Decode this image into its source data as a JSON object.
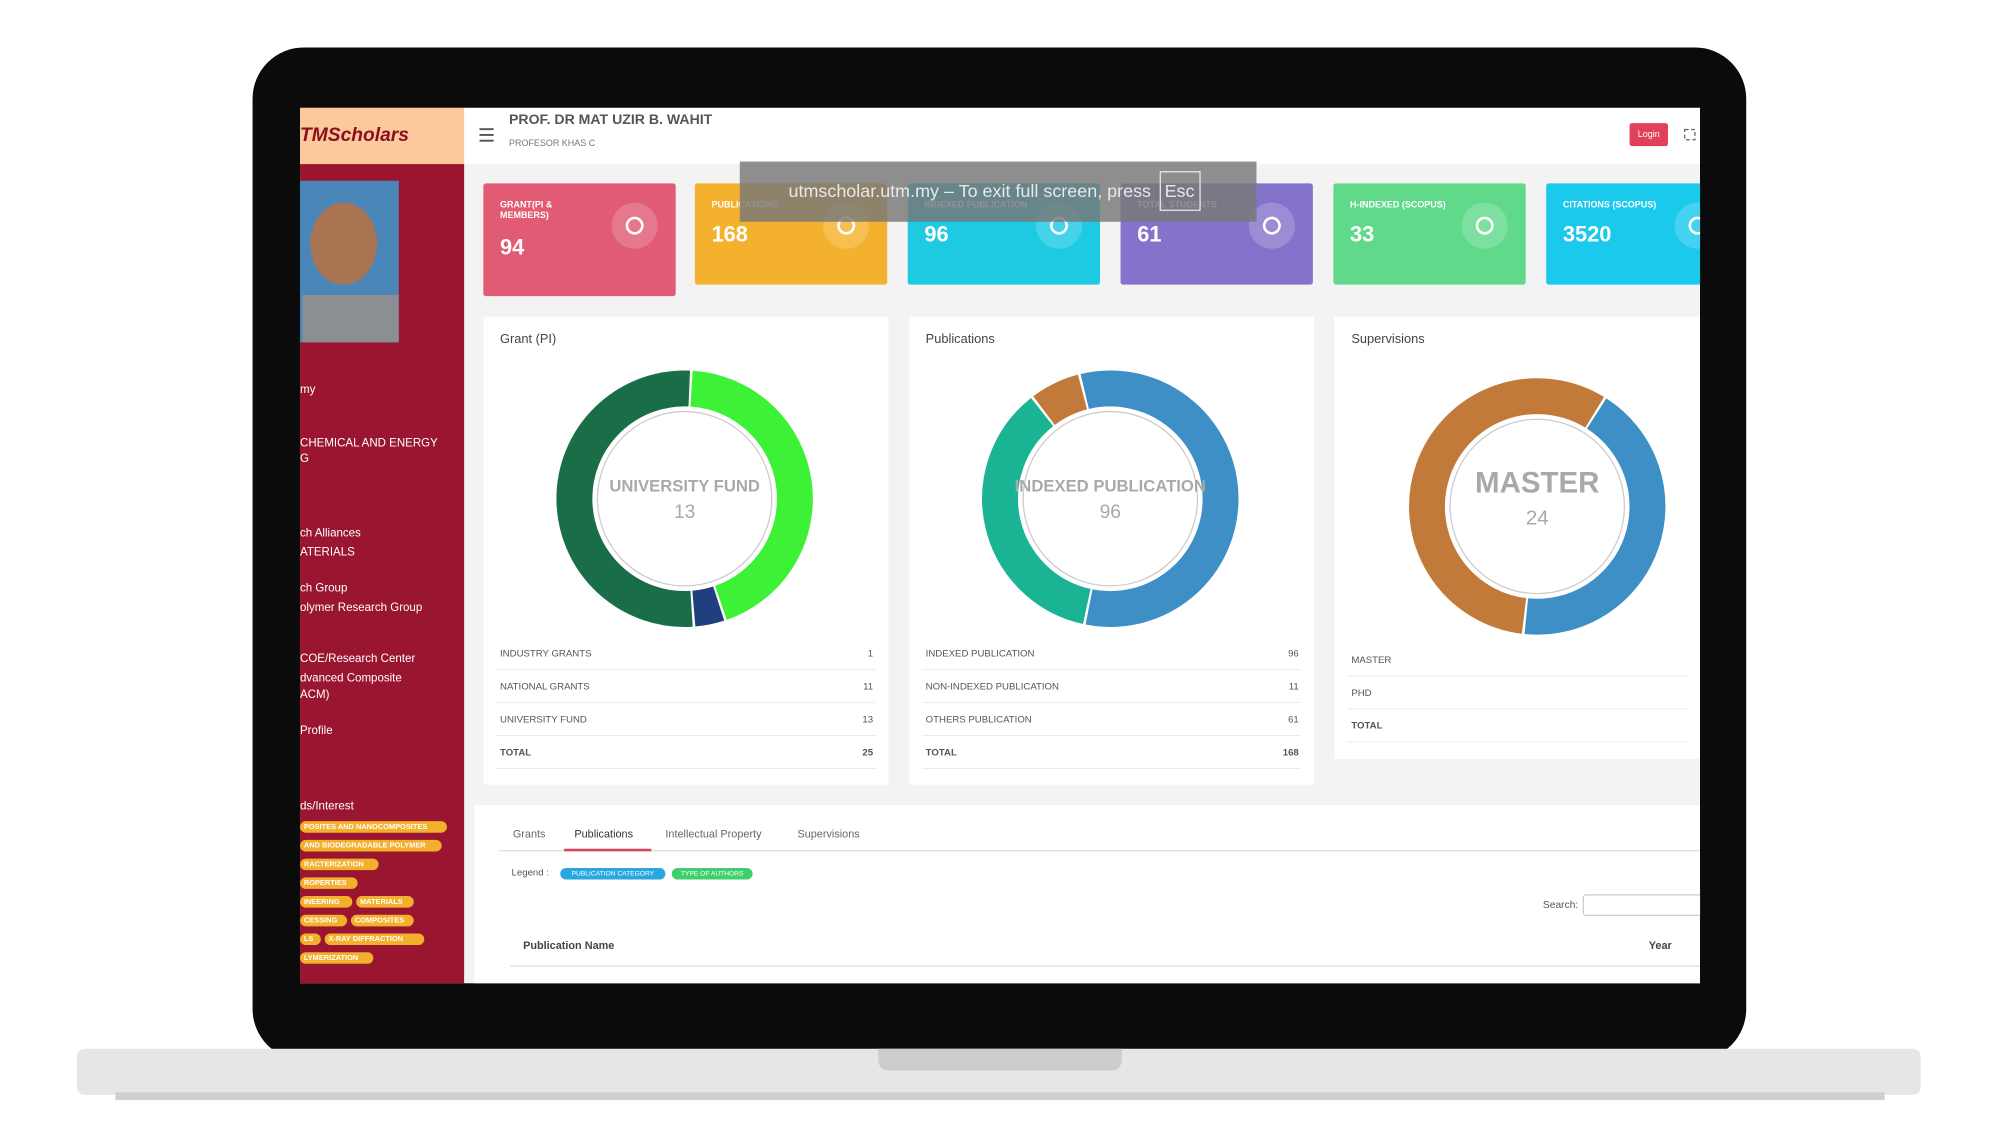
{
  "brand": "TMScholars",
  "header": {
    "name": "PROF. DR MAT UZIR B. WAHIT",
    "position": "PROFESOR KHAS C",
    "login": "Login"
  },
  "notice": {
    "text": "utmscholar.utm.my – To exit full screen, press",
    "key": "Esc"
  },
  "sidebar": {
    "lines": [
      "my",
      "CHEMICAL AND ENERGY",
      "G",
      "ch Alliances",
      "ATERIALS",
      "ch Group",
      "olymer Research Group",
      "COE/Research Center",
      "dvanced Composite",
      "ACM)",
      "Profile",
      "ds/Interest"
    ],
    "interest_tags": [
      [
        "POSITES AND NANOCOMPOSITES"
      ],
      [
        "AND BIODEGRADABLE POLYMER"
      ],
      [
        "RACTERIZATION"
      ],
      [
        "ROPERTIES"
      ],
      [
        "INEERING",
        "MATERIALS"
      ],
      [
        "CESSING",
        "COMPOSITES"
      ],
      [
        "LS",
        "X-RAY DIFFRACTION"
      ],
      [
        "LYMERIZATION"
      ]
    ]
  },
  "stats": [
    {
      "label": [
        "GRANT(PI &",
        "MEMBERS)"
      ],
      "value": 94,
      "color": "#e05b73"
    },
    {
      "label": [
        "PUBLICATIONS"
      ],
      "value": 168,
      "color": "#f4b12d"
    },
    {
      "label": [
        "INDEXED PUBLICATION"
      ],
      "value": 96,
      "color": "#1ec9e2"
    },
    {
      "label": [
        "TOTAL STUDENTS"
      ],
      "value": 61,
      "color": "#8573cb"
    },
    {
      "label": [
        "H-INDEXED (SCOPUS)"
      ],
      "value": 33,
      "color": "#61d98b"
    },
    {
      "label": [
        "CITATIONS (SCOPUS)"
      ],
      "value": 3520,
      "color": "#1ac9ec"
    }
  ],
  "panels": [
    {
      "title": "Grant (PI)",
      "center": {
        "label": "UNIVERSITY FUND",
        "value": 13
      },
      "rows": [
        {
          "label": "INDUSTRY GRANTS",
          "value": 1,
          "color": "#1f3f7e"
        },
        {
          "label": "NATIONAL GRANTS",
          "value": 11,
          "color": "#3df236"
        },
        {
          "label": "UNIVERSITY FUND",
          "value": 13,
          "color": "#1a6e47"
        }
      ],
      "total": {
        "label": "TOTAL",
        "value": 25
      }
    },
    {
      "title": "Publications",
      "center": {
        "label": "INDEXED PUBLICATION",
        "value": 96
      },
      "rows": [
        {
          "label": "INDEXED PUBLICATION",
          "value": 96,
          "color": "#3d8fc6"
        },
        {
          "label": "NON-INDEXED PUBLICATION",
          "value": 11,
          "color": "#c27a3a"
        },
        {
          "label": "OTHERS PUBLICATION",
          "value": 61,
          "color": "#1ab394"
        }
      ],
      "total": {
        "label": "TOTAL",
        "value": 168
      }
    },
    {
      "title": "Supervisions",
      "center": {
        "label": "MASTER",
        "value": 24
      },
      "rows": [
        {
          "label": "MASTER",
          "color": "#c27a3a"
        },
        {
          "label": "PHD",
          "color": "#3d8fc6"
        }
      ],
      "chart_values": [
        24,
        18
      ],
      "total": {
        "label": "TOTAL"
      }
    }
  ],
  "tabs": [
    "Grants",
    "Publications",
    "Intellectual Property",
    "Supervisions"
  ],
  "active_tab": 1,
  "legend": {
    "label": "Legend :",
    "items": [
      {
        "text": "PUBLICATION CATEGORY",
        "color": "#29a8e0"
      },
      {
        "text": "TYPE OF AUTHORS",
        "color": "#3fcf6e"
      }
    ]
  },
  "search_label": "Search:",
  "table_headers": [
    "Publication Name",
    "Year"
  ]
}
